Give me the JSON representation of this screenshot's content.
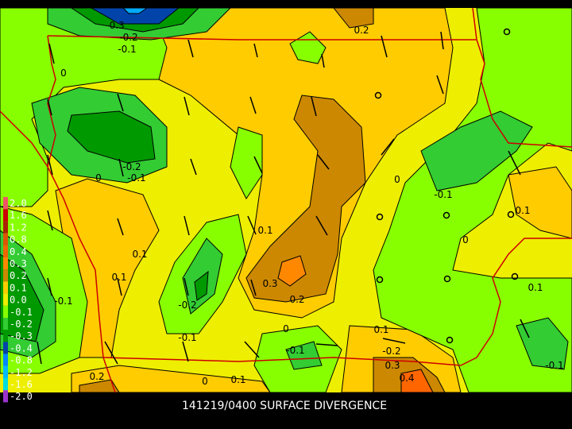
{
  "title": "141219/0400 SURFACE DIVERGENCE",
  "legend": [
    {
      "label": "2.0",
      "color": "#ee5566"
    },
    {
      "label": "1.6",
      "color": "#cc0000"
    },
    {
      "label": "1.2",
      "color": "#aa2200"
    },
    {
      "label": "0.8",
      "color": "#dd5500"
    },
    {
      "label": "0.4",
      "color": "#ee6600"
    },
    {
      "label": "0.3",
      "color": "#ff8800"
    },
    {
      "label": "0.2",
      "color": "#cc8800"
    },
    {
      "label": "0.1",
      "color": "#ffcc00"
    },
    {
      "label": "0.0",
      "color": "#eeee00"
    },
    {
      "label": "-0.1",
      "color": "#88ff00"
    },
    {
      "label": "-0.2",
      "color": "#33cc33"
    },
    {
      "label": "-0.3",
      "color": "#009900"
    },
    {
      "label": "-0.4",
      "color": "#0044aa"
    },
    {
      "label": "-0.8",
      "color": "#0088ff"
    },
    {
      "label": "-1.2",
      "color": "#00bbff"
    },
    {
      "label": "-1.6",
      "color": "#00dddd"
    },
    {
      "label": "-2.0",
      "color": "#9933cc"
    }
  ],
  "contour_labels": [
    "-0.3",
    "-0.2",
    "-0.1",
    "0.2",
    "0",
    "-0.2",
    "-0.1",
    "0",
    "0",
    "-0.1",
    "0.1",
    "0",
    "0.1",
    "0.1",
    "0.1",
    "-0.1",
    "0.3",
    "0.2",
    "-0.2",
    "0.1",
    "0",
    "0.1",
    "-0.1",
    "-0.2",
    "-0.1",
    "0.3",
    "0.4",
    "-0.1",
    "0.2",
    "0",
    "0.1"
  ]
}
